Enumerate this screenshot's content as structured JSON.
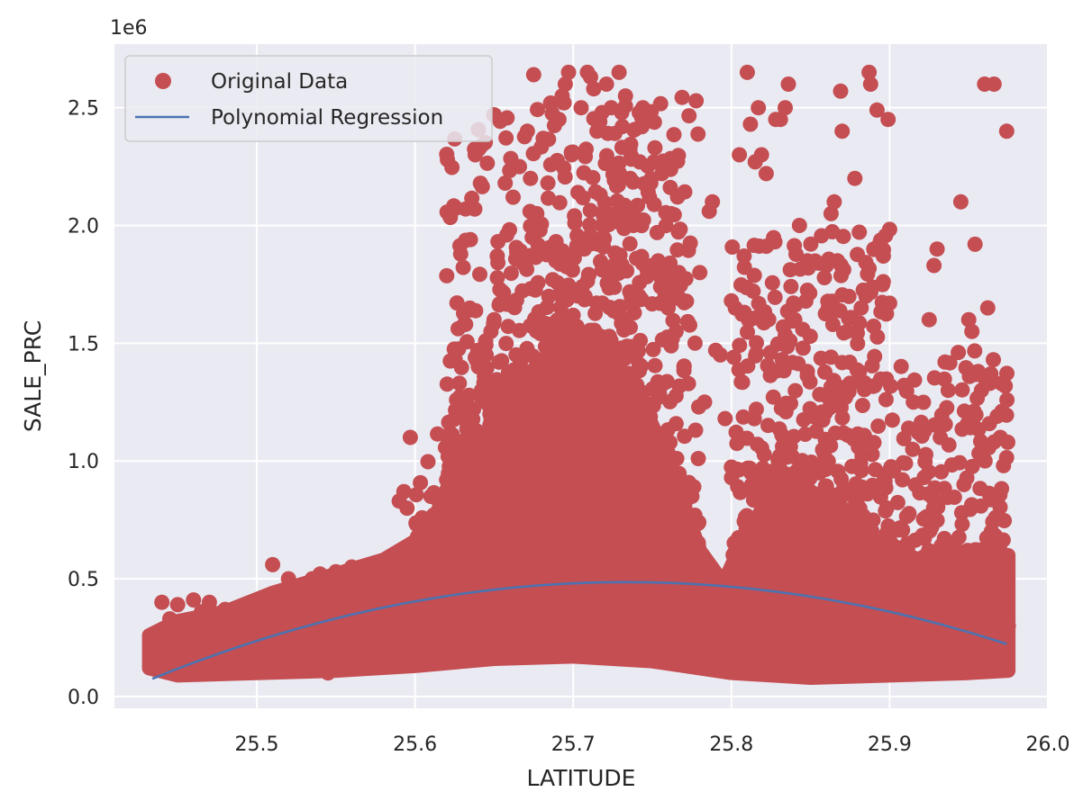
{
  "chart_data": {
    "type": "scatter",
    "title": "",
    "xlabel": "LATITUDE",
    "ylabel": "SALE_PRC",
    "y_offset_label": "1e6",
    "xlim": [
      25.41,
      26.0
    ],
    "ylim": [
      -0.05,
      2.77
    ],
    "x_ticks": [
      25.5,
      25.6,
      25.7,
      25.8,
      25.9,
      26.0
    ],
    "x_tick_labels": [
      "25.5",
      "25.6",
      "25.7",
      "25.8",
      "25.9",
      "26.0"
    ],
    "y_ticks": [
      0.0,
      0.5,
      1.0,
      1.5,
      2.0,
      2.5
    ],
    "y_tick_labels": [
      "0.0",
      "0.5",
      "1.0",
      "1.5",
      "2.0",
      "2.5"
    ],
    "grid": true,
    "legend_position": "top-left",
    "legend": [
      "Original Data",
      "Polynomial Regression"
    ],
    "colors": {
      "scatter": "#c44e52",
      "line": "#4c72b0",
      "plot_background": "#eaeaf2",
      "grid": "#ffffff"
    },
    "series": [
      {
        "name": "Original Data",
        "type": "scatter",
        "points": [
          [
            25.434,
            0.21
          ],
          [
            25.44,
            0.4
          ],
          [
            25.445,
            0.33
          ],
          [
            25.45,
            0.39
          ],
          [
            25.46,
            0.41
          ],
          [
            25.465,
            0.36
          ],
          [
            25.47,
            0.4
          ],
          [
            25.48,
            0.37
          ],
          [
            25.49,
            0.34
          ],
          [
            25.49,
            0.36
          ],
          [
            25.51,
            0.56
          ],
          [
            25.52,
            0.5
          ],
          [
            25.53,
            0.47
          ],
          [
            25.535,
            0.5
          ],
          [
            25.54,
            0.52
          ],
          [
            25.545,
            0.1
          ],
          [
            25.55,
            0.53
          ],
          [
            25.56,
            0.55
          ],
          [
            25.59,
            0.83
          ],
          [
            25.593,
            0.87
          ],
          [
            25.595,
            0.8
          ],
          [
            25.597,
            1.1
          ],
          [
            25.61,
            0.85
          ],
          [
            25.62,
            0.92
          ],
          [
            25.625,
            1.03
          ],
          [
            25.628,
            1.33
          ],
          [
            25.632,
            1.58
          ],
          [
            25.632,
            2.07
          ],
          [
            25.635,
            1.94
          ],
          [
            25.637,
            1.22
          ],
          [
            25.638,
            2.3
          ],
          [
            25.64,
            1.4
          ],
          [
            25.642,
            1.3
          ],
          [
            25.645,
            1.45
          ],
          [
            25.648,
            1.55
          ],
          [
            25.65,
            1.6
          ],
          [
            25.652,
            1.87
          ],
          [
            25.655,
            1.72
          ],
          [
            25.658,
            1.96
          ],
          [
            25.662,
            2.12
          ],
          [
            25.666,
            2.25
          ],
          [
            25.668,
            1.84
          ],
          [
            25.671,
            2.4
          ],
          [
            25.673,
            2.2
          ],
          [
            25.675,
            2.64
          ],
          [
            25.677,
            2.05
          ],
          [
            25.679,
            1.98
          ],
          [
            25.681,
            2.37
          ],
          [
            25.684,
            2.18
          ],
          [
            25.687,
            1.77
          ],
          [
            25.689,
            1.85
          ],
          [
            25.691,
            2.45
          ],
          [
            25.693,
            2.55
          ],
          [
            25.695,
            2.6
          ],
          [
            25.697,
            2.65
          ],
          [
            25.699,
            2.3
          ],
          [
            25.701,
            2.01
          ],
          [
            25.703,
            2.14
          ],
          [
            25.705,
            2.5
          ],
          [
            25.707,
            1.9
          ],
          [
            25.709,
            2.65
          ],
          [
            25.711,
            2.63
          ],
          [
            25.713,
            2.58
          ],
          [
            25.715,
            2.4
          ],
          [
            25.717,
            2.13
          ],
          [
            25.719,
            1.95
          ],
          [
            25.721,
            2.6
          ],
          [
            25.724,
            2.5
          ],
          [
            25.727,
            1.88
          ],
          [
            25.729,
            2.65
          ],
          [
            25.731,
            2.42
          ],
          [
            25.733,
            2.55
          ],
          [
            25.736,
            2.2
          ],
          [
            25.738,
            2.0
          ],
          [
            25.74,
            1.86
          ],
          [
            25.742,
            2.27
          ],
          [
            25.744,
            2.5
          ],
          [
            25.746,
            2.47
          ],
          [
            25.749,
            2.18
          ],
          [
            25.751,
            2.27
          ],
          [
            25.753,
            1.97
          ],
          [
            25.756,
            2.22
          ],
          [
            25.758,
            1.8
          ],
          [
            25.76,
            1.65
          ],
          [
            25.765,
            1.55
          ],
          [
            25.77,
            1.4
          ],
          [
            25.775,
            0.85
          ],
          [
            25.78,
            1.8
          ],
          [
            25.783,
            1.25
          ],
          [
            25.786,
            2.06
          ],
          [
            25.788,
            2.1
          ],
          [
            25.79,
            1.47
          ],
          [
            25.793,
            1.45
          ],
          [
            25.796,
            1.18
          ],
          [
            25.8,
            1.68
          ],
          [
            25.805,
            2.3
          ],
          [
            25.808,
            1.87
          ],
          [
            25.81,
            2.65
          ],
          [
            25.812,
            2.43
          ],
          [
            25.815,
            2.27
          ],
          [
            25.817,
            2.5
          ],
          [
            25.819,
            2.3
          ],
          [
            25.822,
            2.22
          ],
          [
            25.826,
            1.93
          ],
          [
            25.828,
            2.45
          ],
          [
            25.831,
            2.45
          ],
          [
            25.834,
            2.5
          ],
          [
            25.836,
            2.6
          ],
          [
            25.84,
            1.6
          ],
          [
            25.843,
            2.0
          ],
          [
            25.848,
            1.85
          ],
          [
            25.855,
            1.84
          ],
          [
            25.86,
            1.83
          ],
          [
            25.863,
            2.05
          ],
          [
            25.865,
            2.1
          ],
          [
            25.867,
            1.85
          ],
          [
            25.869,
            2.57
          ],
          [
            25.87,
            2.4
          ],
          [
            25.873,
            1.55
          ],
          [
            25.878,
            2.2
          ],
          [
            25.882,
            1.65
          ],
          [
            25.885,
            1.7
          ],
          [
            25.887,
            2.65
          ],
          [
            25.888,
            2.6
          ],
          [
            25.89,
            1.9
          ],
          [
            25.892,
            2.49
          ],
          [
            25.894,
            1.93
          ],
          [
            25.896,
            1.87
          ],
          [
            25.899,
            2.45
          ],
          [
            25.9,
            1.67
          ],
          [
            25.91,
            0.99
          ],
          [
            25.915,
            1.25
          ],
          [
            25.925,
            1.6
          ],
          [
            25.928,
            1.83
          ],
          [
            25.93,
            1.9
          ],
          [
            25.932,
            1.1
          ],
          [
            25.935,
            1.42
          ],
          [
            25.937,
            1.3
          ],
          [
            25.945,
            2.1
          ],
          [
            25.947,
            0.9
          ],
          [
            25.95,
            1.6
          ],
          [
            25.952,
            1.55
          ],
          [
            25.954,
            1.92
          ],
          [
            25.956,
            1.38
          ],
          [
            25.958,
            1.3
          ],
          [
            25.96,
            2.6
          ],
          [
            25.962,
            1.65
          ],
          [
            25.964,
            1.37
          ],
          [
            25.966,
            2.6
          ],
          [
            25.968,
            1.19
          ],
          [
            25.97,
            1.1
          ],
          [
            25.972,
            0.98
          ],
          [
            25.974,
            2.4
          ],
          [
            25.975,
            0.3
          ]
        ]
      },
      {
        "name": "Polynomial Regression",
        "type": "line",
        "x": [
          25.434,
          25.5,
          25.6,
          25.7,
          25.735,
          25.8,
          25.9,
          25.974
        ],
        "y": [
          0.08,
          0.23,
          0.4,
          0.485,
          0.49,
          0.465,
          0.355,
          0.225
        ]
      }
    ]
  }
}
